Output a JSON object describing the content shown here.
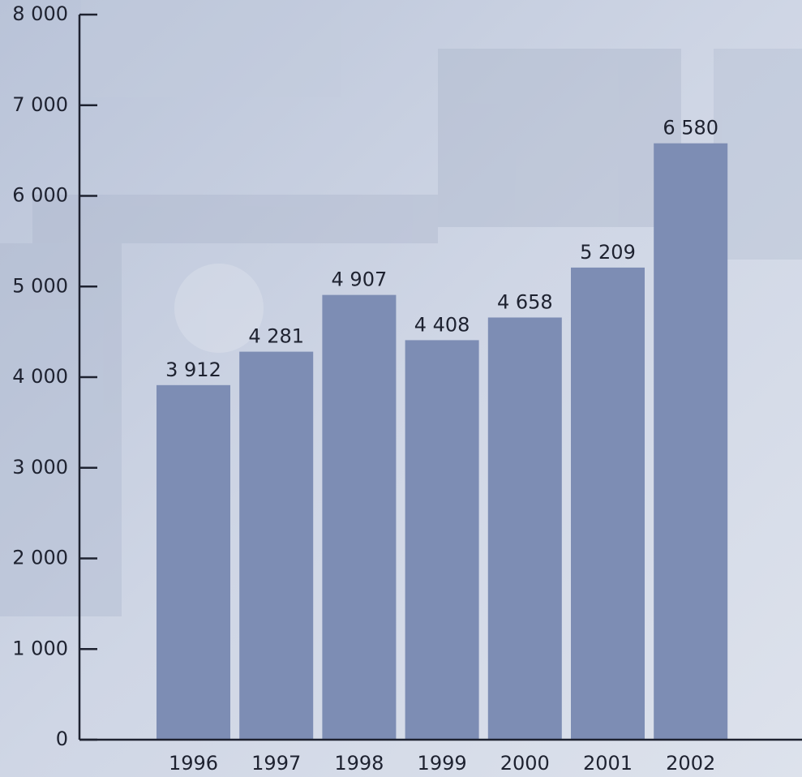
{
  "chart_data": {
    "type": "bar",
    "categories": [
      "1996",
      "1997",
      "1998",
      "1999",
      "2000",
      "2001",
      "2002"
    ],
    "values": [
      3912,
      4281,
      4907,
      4408,
      4658,
      5209,
      6580
    ],
    "value_labels": [
      "3 912",
      "4 281",
      "4 907",
      "4 408",
      "4 658",
      "5 209",
      "6 580"
    ],
    "color": "#7d8db4",
    "ylim": [
      0,
      8000
    ],
    "yticks": [
      {
        "value": 0,
        "label": "0"
      },
      {
        "value": 1000,
        "label": "1 000"
      },
      {
        "value": 2000,
        "label": "2 000"
      },
      {
        "value": 3000,
        "label": "3 000"
      },
      {
        "value": 4000,
        "label": "4 000"
      },
      {
        "value": 5000,
        "label": "5 000"
      },
      {
        "value": 6000,
        "label": "6 000"
      },
      {
        "value": 7000,
        "label": "7 000"
      },
      {
        "value": 8000,
        "label": "8 000"
      }
    ]
  }
}
